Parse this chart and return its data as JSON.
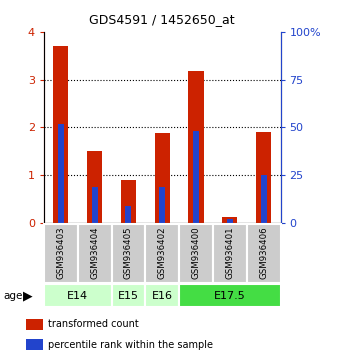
{
  "title": "GDS4591 / 1452650_at",
  "samples": [
    "GSM936403",
    "GSM936404",
    "GSM936405",
    "GSM936402",
    "GSM936400",
    "GSM936401",
    "GSM936406"
  ],
  "red_values": [
    3.7,
    1.5,
    0.9,
    1.88,
    3.18,
    0.12,
    1.9
  ],
  "blue_pct": [
    52,
    19,
    9,
    19,
    48,
    2,
    25
  ],
  "age_group_configs": [
    {
      "label": "E14",
      "start": 0,
      "end": 1,
      "color": "#ccffcc"
    },
    {
      "label": "E15",
      "start": 2,
      "end": 2,
      "color": "#ccffcc"
    },
    {
      "label": "E16",
      "start": 3,
      "end": 3,
      "color": "#ccffcc"
    },
    {
      "label": "E17.5",
      "start": 4,
      "end": 6,
      "color": "#44dd44"
    }
  ],
  "ylim_left": [
    0,
    4
  ],
  "ylim_right": [
    0,
    100
  ],
  "left_ticks": [
    0,
    1,
    2,
    3,
    4
  ],
  "right_ticks": [
    0,
    25,
    50,
    75,
    100
  ],
  "right_tick_labels": [
    "0",
    "25",
    "50",
    "75",
    "100%"
  ],
  "red_color": "#cc2200",
  "blue_color": "#2244cc",
  "bg_sample": "#cccccc",
  "bg_age_light": "#ccffcc",
  "bg_age_dark": "#44dd44",
  "left_tick_color": "#cc2200",
  "right_tick_color": "#2244cc"
}
